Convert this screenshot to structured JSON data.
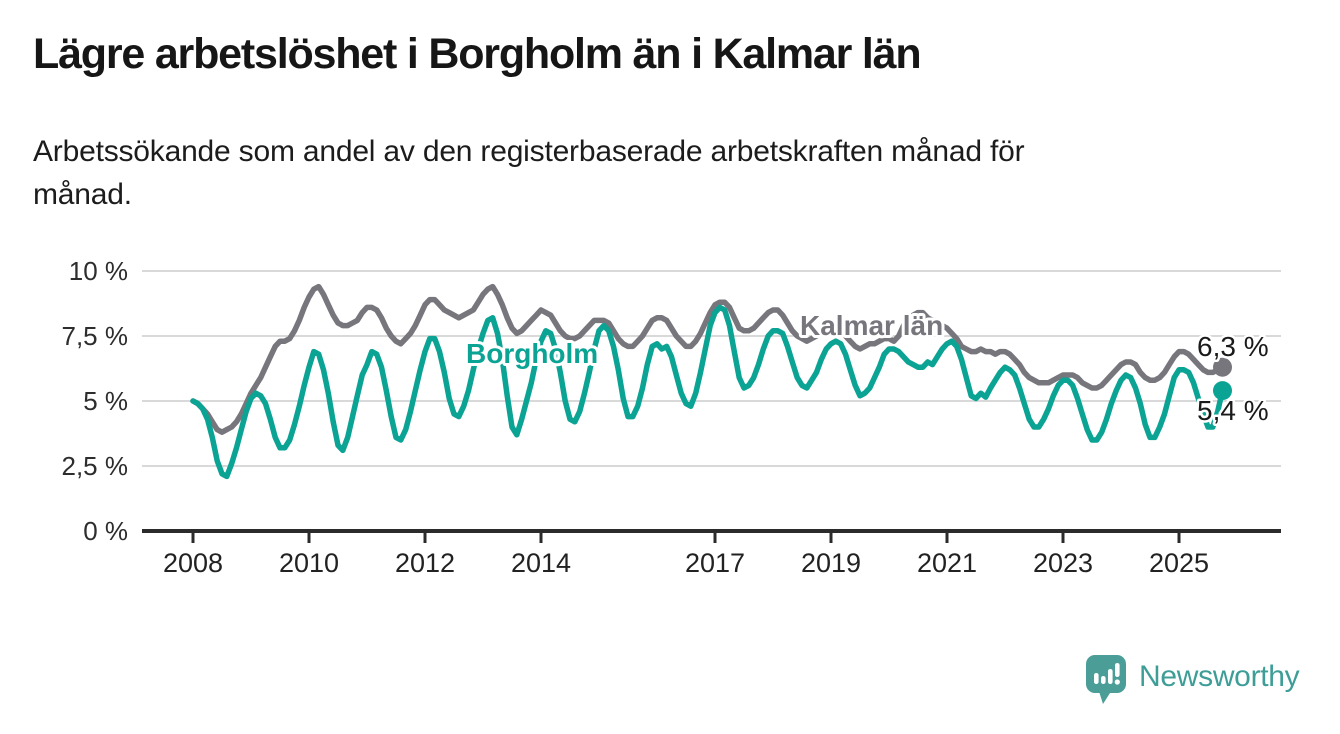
{
  "header": {
    "title": "Lägre arbetslöshet i Borgholm än i Kalmar län",
    "subtitle_line1": "Arbetssökande som andel av den registerbaserade arbetskraften månad för",
    "subtitle_line2": "månad."
  },
  "chart_data": {
    "type": "line",
    "title": "Lägre arbetslöshet i Borgholm än i Kalmar län",
    "subtitle": "Arbetssökande som andel av den registerbaserade arbetskraften månad för månad.",
    "x_start": "2008-01",
    "x_end": "2025-10",
    "x_interval": "month",
    "grid": "horizontal",
    "legend_position": "inline-labels",
    "y_axis": {
      "min": 0,
      "max": 10,
      "tick_values": [
        0,
        2.5,
        5,
        7.5,
        10
      ],
      "tick_labels": [
        "0 %",
        "2,5 %",
        "5 %",
        "7,5 %",
        "10 %"
      ]
    },
    "x_axis": {
      "tick_years": [
        2008,
        2010,
        2012,
        2014,
        2017,
        2019,
        2021,
        2023,
        2025
      ],
      "tick_labels": [
        "2008",
        "2010",
        "2012",
        "2014",
        "2017",
        "2019",
        "2021",
        "2023",
        "2025"
      ]
    },
    "series": [
      {
        "name": "Kalmar län",
        "color": "#77767c",
        "end_value": 6.3,
        "end_label": "6,3 %",
        "values": [
          5.0,
          4.9,
          4.7,
          4.5,
          4.2,
          3.9,
          3.8,
          3.9,
          4.0,
          4.2,
          4.5,
          4.9,
          5.3,
          5.6,
          5.9,
          6.3,
          6.7,
          7.1,
          7.3,
          7.3,
          7.4,
          7.7,
          8.1,
          8.6,
          9.0,
          9.3,
          9.4,
          9.1,
          8.7,
          8.3,
          8.0,
          7.9,
          7.9,
          8.0,
          8.1,
          8.4,
          8.6,
          8.6,
          8.5,
          8.2,
          7.8,
          7.5,
          7.3,
          7.2,
          7.4,
          7.6,
          7.9,
          8.3,
          8.7,
          8.9,
          8.9,
          8.7,
          8.5,
          8.4,
          8.3,
          8.2,
          8.3,
          8.4,
          8.5,
          8.8,
          9.1,
          9.3,
          9.4,
          9.1,
          8.7,
          8.2,
          7.8,
          7.6,
          7.7,
          7.9,
          8.1,
          8.3,
          8.5,
          8.4,
          8.3,
          8.0,
          7.7,
          7.5,
          7.4,
          7.4,
          7.5,
          7.7,
          7.9,
          8.1,
          8.1,
          8.1,
          8.0,
          7.7,
          7.4,
          7.2,
          7.1,
          7.1,
          7.3,
          7.5,
          7.8,
          8.1,
          8.2,
          8.2,
          8.1,
          7.8,
          7.5,
          7.3,
          7.1,
          7.1,
          7.3,
          7.6,
          8.0,
          8.4,
          8.7,
          8.8,
          8.8,
          8.6,
          8.2,
          7.8,
          7.7,
          7.7,
          7.8,
          8.0,
          8.2,
          8.4,
          8.5,
          8.5,
          8.3,
          8.0,
          7.7,
          7.5,
          7.4,
          7.3,
          7.4,
          7.5,
          7.6,
          7.8,
          7.9,
          7.9,
          7.8,
          7.5,
          7.3,
          7.1,
          7.0,
          7.1,
          7.2,
          7.2,
          7.3,
          7.4,
          7.4,
          7.3,
          7.5,
          7.9,
          8.2,
          8.3,
          8.4,
          8.4,
          8.2,
          8.1,
          8.0,
          7.9,
          7.8,
          7.6,
          7.4,
          7.1,
          7.0,
          6.9,
          6.9,
          7.0,
          6.9,
          6.9,
          6.8,
          6.9,
          6.9,
          6.8,
          6.6,
          6.4,
          6.1,
          5.9,
          5.8,
          5.7,
          5.7,
          5.7,
          5.8,
          5.9,
          6.0,
          6.0,
          6.0,
          5.9,
          5.7,
          5.6,
          5.5,
          5.5,
          5.6,
          5.8,
          6.0,
          6.2,
          6.4,
          6.5,
          6.5,
          6.4,
          6.1,
          5.9,
          5.8,
          5.8,
          5.9,
          6.1,
          6.4,
          6.7,
          6.9,
          6.9,
          6.8,
          6.6,
          6.4,
          6.2,
          6.1,
          6.1,
          6.2,
          6.3
        ]
      },
      {
        "name": "Borgholm",
        "color": "#0ba394",
        "end_value": 5.4,
        "end_label": "5,4 %",
        "values": [
          5.0,
          4.9,
          4.7,
          4.3,
          3.6,
          2.7,
          2.2,
          2.1,
          2.6,
          3.2,
          3.9,
          4.6,
          5.1,
          5.3,
          5.2,
          4.9,
          4.3,
          3.6,
          3.2,
          3.2,
          3.5,
          4.1,
          4.8,
          5.6,
          6.3,
          6.9,
          6.8,
          6.2,
          5.3,
          4.2,
          3.3,
          3.1,
          3.6,
          4.4,
          5.2,
          6.0,
          6.4,
          6.9,
          6.8,
          6.3,
          5.4,
          4.4,
          3.6,
          3.5,
          3.9,
          4.6,
          5.4,
          6.2,
          6.9,
          7.4,
          7.4,
          6.9,
          6.1,
          5.1,
          4.5,
          4.4,
          4.8,
          5.4,
          6.2,
          7.0,
          7.6,
          8.1,
          8.2,
          7.6,
          6.6,
          5.2,
          4.0,
          3.7,
          4.3,
          5.0,
          5.7,
          6.6,
          7.3,
          7.7,
          7.6,
          7.0,
          6.1,
          5.0,
          4.3,
          4.2,
          4.6,
          5.3,
          6.1,
          7.0,
          7.7,
          7.9,
          7.7,
          7.1,
          6.2,
          5.1,
          4.4,
          4.4,
          4.8,
          5.5,
          6.4,
          7.1,
          7.2,
          7.0,
          7.1,
          6.7,
          6.0,
          5.3,
          4.9,
          4.8,
          5.3,
          6.1,
          7.0,
          7.9,
          8.4,
          8.6,
          8.5,
          7.9,
          6.9,
          5.9,
          5.5,
          5.6,
          5.9,
          6.4,
          7.0,
          7.5,
          7.7,
          7.7,
          7.6,
          7.1,
          6.5,
          5.9,
          5.6,
          5.5,
          5.8,
          6.1,
          6.6,
          7.0,
          7.2,
          7.3,
          7.2,
          6.8,
          6.2,
          5.6,
          5.2,
          5.3,
          5.5,
          5.9,
          6.3,
          6.8,
          7.0,
          7.0,
          6.9,
          6.7,
          6.5,
          6.4,
          6.3,
          6.3,
          6.5,
          6.4,
          6.7,
          7.0,
          7.2,
          7.3,
          7.1,
          6.6,
          5.9,
          5.2,
          5.1,
          5.3,
          5.15,
          5.5,
          5.8,
          6.1,
          6.3,
          6.2,
          6.0,
          5.5,
          4.9,
          4.3,
          4.0,
          4.0,
          4.3,
          4.7,
          5.2,
          5.6,
          5.8,
          5.8,
          5.6,
          5.1,
          4.5,
          3.9,
          3.5,
          3.5,
          3.8,
          4.3,
          4.9,
          5.4,
          5.8,
          6.0,
          5.9,
          5.5,
          4.9,
          4.1,
          3.6,
          3.6,
          4.0,
          4.5,
          5.2,
          5.9,
          6.2,
          6.2,
          6.1,
          5.7,
          5.1,
          4.5,
          4.0,
          4.0,
          4.6,
          5.4
        ]
      }
    ]
  },
  "footer": {
    "brand": "Newsworthy"
  }
}
